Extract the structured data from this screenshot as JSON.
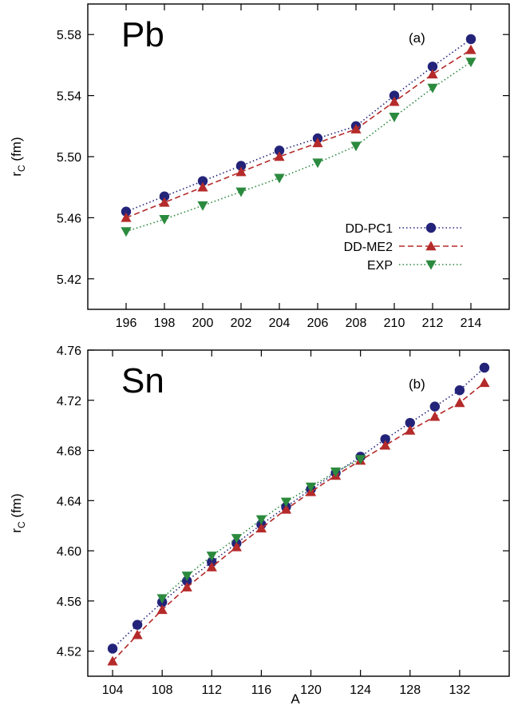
{
  "colors": {
    "DD-PC1": "#23237a",
    "DD-ME2": "#b52a2a",
    "EXP": "#2b8a3e"
  },
  "legend": [
    "DD-PC1",
    "DD-ME2",
    "EXP"
  ],
  "chart_data": [
    {
      "type": "line",
      "title": "Pb",
      "tag": "(a)",
      "xlabel": "",
      "ylabel": "r_C (fm)",
      "xlim": [
        194,
        216
      ],
      "ylim": [
        5.4,
        5.6
      ],
      "xticks": [
        196,
        198,
        200,
        202,
        204,
        206,
        208,
        210,
        212,
        214
      ],
      "yticks": [
        5.42,
        5.46,
        5.5,
        5.54,
        5.58
      ],
      "ytick_labels": [
        "5.42",
        "5.46",
        "5.50",
        "5.54",
        "5.58"
      ],
      "legend_position": "center-right",
      "series": [
        {
          "name": "DD-PC1",
          "marker": "circle",
          "dash": "dotted",
          "x": [
            196,
            198,
            200,
            202,
            204,
            206,
            208,
            210,
            212,
            214
          ],
          "y": [
            5.464,
            5.474,
            5.484,
            5.494,
            5.504,
            5.512,
            5.52,
            5.54,
            5.559,
            5.577
          ]
        },
        {
          "name": "DD-ME2",
          "marker": "triangle-up",
          "dash": "dashed",
          "x": [
            196,
            198,
            200,
            202,
            204,
            206,
            208,
            210,
            212,
            214
          ],
          "y": [
            5.46,
            5.47,
            5.48,
            5.49,
            5.5,
            5.509,
            5.518,
            5.536,
            5.554,
            5.57
          ]
        },
        {
          "name": "EXP",
          "marker": "triangle-down",
          "dash": "dotted",
          "x": [
            196,
            198,
            200,
            202,
            204,
            206,
            208,
            210,
            212,
            214
          ],
          "y": [
            5.451,
            5.459,
            5.468,
            5.477,
            5.486,
            5.496,
            5.507,
            5.526,
            5.545,
            5.562
          ]
        }
      ]
    },
    {
      "type": "line",
      "title": "Sn",
      "tag": "(b)",
      "xlabel": "A",
      "ylabel": "r_C (fm)",
      "xlim": [
        102,
        136
      ],
      "ylim": [
        4.5,
        4.76
      ],
      "xticks": [
        104,
        108,
        112,
        116,
        120,
        124,
        128,
        132
      ],
      "yticks": [
        4.52,
        4.56,
        4.6,
        4.64,
        4.68,
        4.72,
        4.76
      ],
      "ytick_labels": [
        "4.52",
        "4.56",
        "4.60",
        "4.64",
        "4.68",
        "4.72",
        "4.76"
      ],
      "legend_position": "none",
      "series": [
        {
          "name": "DD-PC1",
          "marker": "circle",
          "dash": "dotted",
          "x": [
            104,
            106,
            108,
            110,
            112,
            114,
            116,
            118,
            120,
            122,
            124,
            126,
            128,
            130,
            132,
            134
          ],
          "y": [
            4.522,
            4.541,
            4.559,
            4.576,
            4.591,
            4.606,
            4.621,
            4.635,
            4.649,
            4.662,
            4.675,
            4.689,
            4.702,
            4.715,
            4.728,
            4.746
          ]
        },
        {
          "name": "DD-ME2",
          "marker": "triangle-up",
          "dash": "dashed",
          "x": [
            104,
            106,
            108,
            110,
            112,
            114,
            116,
            118,
            120,
            122,
            124,
            126,
            128,
            130,
            132,
            134
          ],
          "y": [
            4.512,
            4.533,
            4.553,
            4.571,
            4.587,
            4.603,
            4.618,
            4.633,
            4.647,
            4.66,
            4.672,
            4.684,
            4.696,
            4.707,
            4.718,
            4.734
          ]
        },
        {
          "name": "EXP",
          "marker": "triangle-down",
          "dash": "dotted",
          "x": [
            108,
            110,
            112,
            114,
            116,
            118,
            120,
            122,
            124
          ],
          "y": [
            4.562,
            4.58,
            4.596,
            4.61,
            4.625,
            4.639,
            4.651,
            4.663,
            4.673
          ]
        }
      ]
    }
  ]
}
